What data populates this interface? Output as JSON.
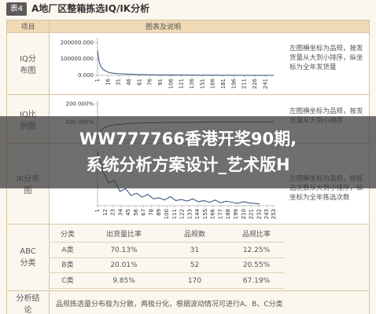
{
  "header": {
    "badge": "表4",
    "title": "A地厂区整箱拣选IQ/IK分析"
  },
  "table": {
    "columns": [
      "项目",
      "图表及说明"
    ],
    "rows": [
      {
        "label": "IQ分布图",
        "note": "左图横坐标为品规，按发货量从大到小排序，纵坐标为全年发货量",
        "chart": {
          "type": "line",
          "color": "#2e4a7a",
          "x": [
            1,
            3,
            5,
            8,
            12,
            16,
            20,
            30,
            45,
            60,
            80,
            100,
            130,
            160,
            200,
            240,
            253
          ],
          "values": [
            150000,
            90000,
            60000,
            40000,
            28000,
            20000,
            15000,
            10000,
            7000,
            5000,
            3500,
            2500,
            1500,
            1000,
            500,
            200,
            100
          ],
          "xlim": [
            1,
            253
          ],
          "ylim": [
            0,
            230000
          ],
          "xticks": [
            1,
            16,
            31,
            46,
            61,
            76,
            91,
            106,
            121,
            136,
            151,
            166,
            181,
            196,
            211,
            226,
            241
          ],
          "yticks": [
            {
              "value": 0,
              "label": "0.000"
            },
            {
              "value": 100000,
              "label": "100000.000"
            },
            {
              "value": 200000,
              "label": "200000.000"
            }
          ]
        }
      },
      {
        "label": "IQ比例图",
        "note": "左图横坐标为品规，按发货量从大到小排序",
        "chart": {
          "type": "line",
          "color": "#2e4a7a",
          "x": [
            1,
            3,
            5,
            8,
            12,
            16,
            20,
            30,
            45,
            60,
            80,
            100,
            130,
            160,
            200,
            240,
            253
          ],
          "values": [
            5,
            30,
            45,
            60,
            70,
            75,
            80,
            85,
            90,
            93,
            95,
            97,
            98,
            99,
            99.5,
            100,
            100
          ],
          "xlim": [
            1,
            253
          ],
          "ylim": [
            0,
            220
          ],
          "yticks": [
            {
              "value": 100,
              "label": "100.000%"
            },
            {
              "value": 200,
              "label": "200.000%"
            }
          ]
        }
      },
      {
        "label": "IK分布图",
        "note": "左图横坐标为品规，按拣选次数从大到小排序，纵坐标为全年拣选次数",
        "chart": {
          "type": "line",
          "color": "#2e4a7a",
          "x": [
            1,
            9,
            17,
            25,
            33,
            41,
            49,
            57,
            65,
            73,
            81,
            89,
            97,
            105,
            113,
            121,
            129,
            137,
            145,
            153,
            161,
            169,
            177,
            185,
            193,
            201,
            209,
            217,
            225,
            233
          ],
          "values": [
            95,
            60,
            40,
            45,
            25,
            30,
            18,
            22,
            15,
            20,
            12,
            14,
            10,
            16,
            9,
            11,
            8,
            12,
            7,
            9,
            6,
            10,
            5,
            8,
            6,
            4,
            7,
            5,
            4,
            3
          ],
          "xlim": [
            1,
            253
          ],
          "ylim": [
            0,
            100
          ],
          "xticks": [
            1,
            12,
            23,
            34,
            45,
            56,
            67,
            78,
            89,
            100,
            111,
            122,
            133,
            144,
            155,
            166,
            177,
            188,
            199,
            210,
            221,
            232,
            243,
            253
          ]
        }
      }
    ],
    "abc": {
      "label": "ABC分类",
      "columns": [
        "分类",
        "出货量比率",
        "品规数",
        "品规比率"
      ],
      "rows": [
        [
          "A类",
          "70.13%",
          "31",
          "12.25%"
        ],
        [
          "B类",
          "20.01%",
          "52",
          "20.55%"
        ],
        [
          "C类",
          "9.85%",
          "170",
          "67.19%"
        ]
      ]
    },
    "conclusion": {
      "label": "分析结论",
      "text": "品规拣选量分布极为分散，两极分化，根据波动情况可进行A、B、C分类"
    }
  },
  "banner": {
    "lines": [
      "WW777766香港开奖90期,",
      "系统分析方案设计_艺术版H"
    ]
  }
}
